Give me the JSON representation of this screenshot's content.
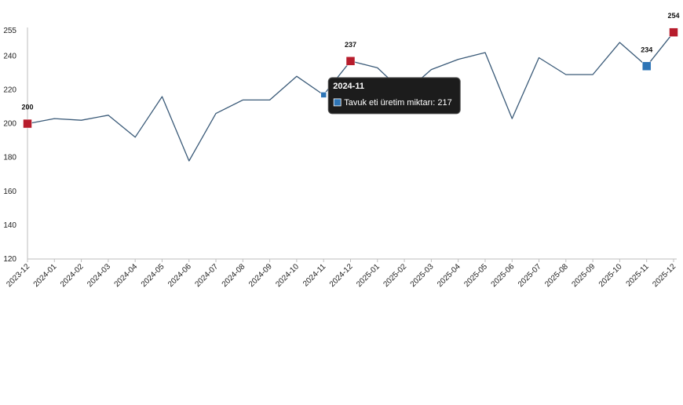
{
  "chart_data": {
    "type": "line",
    "categories": [
      "2023-12",
      "2024-01",
      "2024-02",
      "2024-03",
      "2024-04",
      "2024-05",
      "2024-06",
      "2024-07",
      "2024-08",
      "2024-09",
      "2024-10",
      "2024-11",
      "2024-12",
      "2025-01",
      "2025-02",
      "2025-03",
      "2025-04",
      "2025-05",
      "2025-06",
      "2025-07",
      "2025-08",
      "2025-09",
      "2025-10",
      "2025-11",
      "2025-12"
    ],
    "series": [
      {
        "name": "Tavuk eti üretim miktarı",
        "values": [
          200,
          203,
          202,
          205,
          192,
          216,
          178,
          206,
          214,
          214,
          228,
          217,
          237,
          233,
          218,
          232,
          238,
          242,
          203,
          239,
          229,
          229,
          248,
          234,
          254
        ],
        "color": "#3a5a78"
      }
    ],
    "highlight_points": [
      {
        "index": 0,
        "label": "200",
        "color": "#b71c2c"
      },
      {
        "index": 12,
        "label": "237",
        "color": "#b71c2c"
      },
      {
        "index": 23,
        "label": "234",
        "color": "#2e75b6"
      },
      {
        "index": 24,
        "label": "254",
        "color": "#b71c2c"
      },
      {
        "index": 11,
        "label": "",
        "color": "#2e75b6"
      }
    ],
    "y_ticks": [
      "120",
      "140",
      "160",
      "180",
      "200",
      "220",
      "240",
      "255"
    ],
    "ylim": [
      120,
      255
    ],
    "grid": false,
    "tooltip": {
      "title": "2024-11",
      "text": "Tavuk eti üretim miktarı: 217",
      "marker_color": "#2e75b6"
    }
  }
}
